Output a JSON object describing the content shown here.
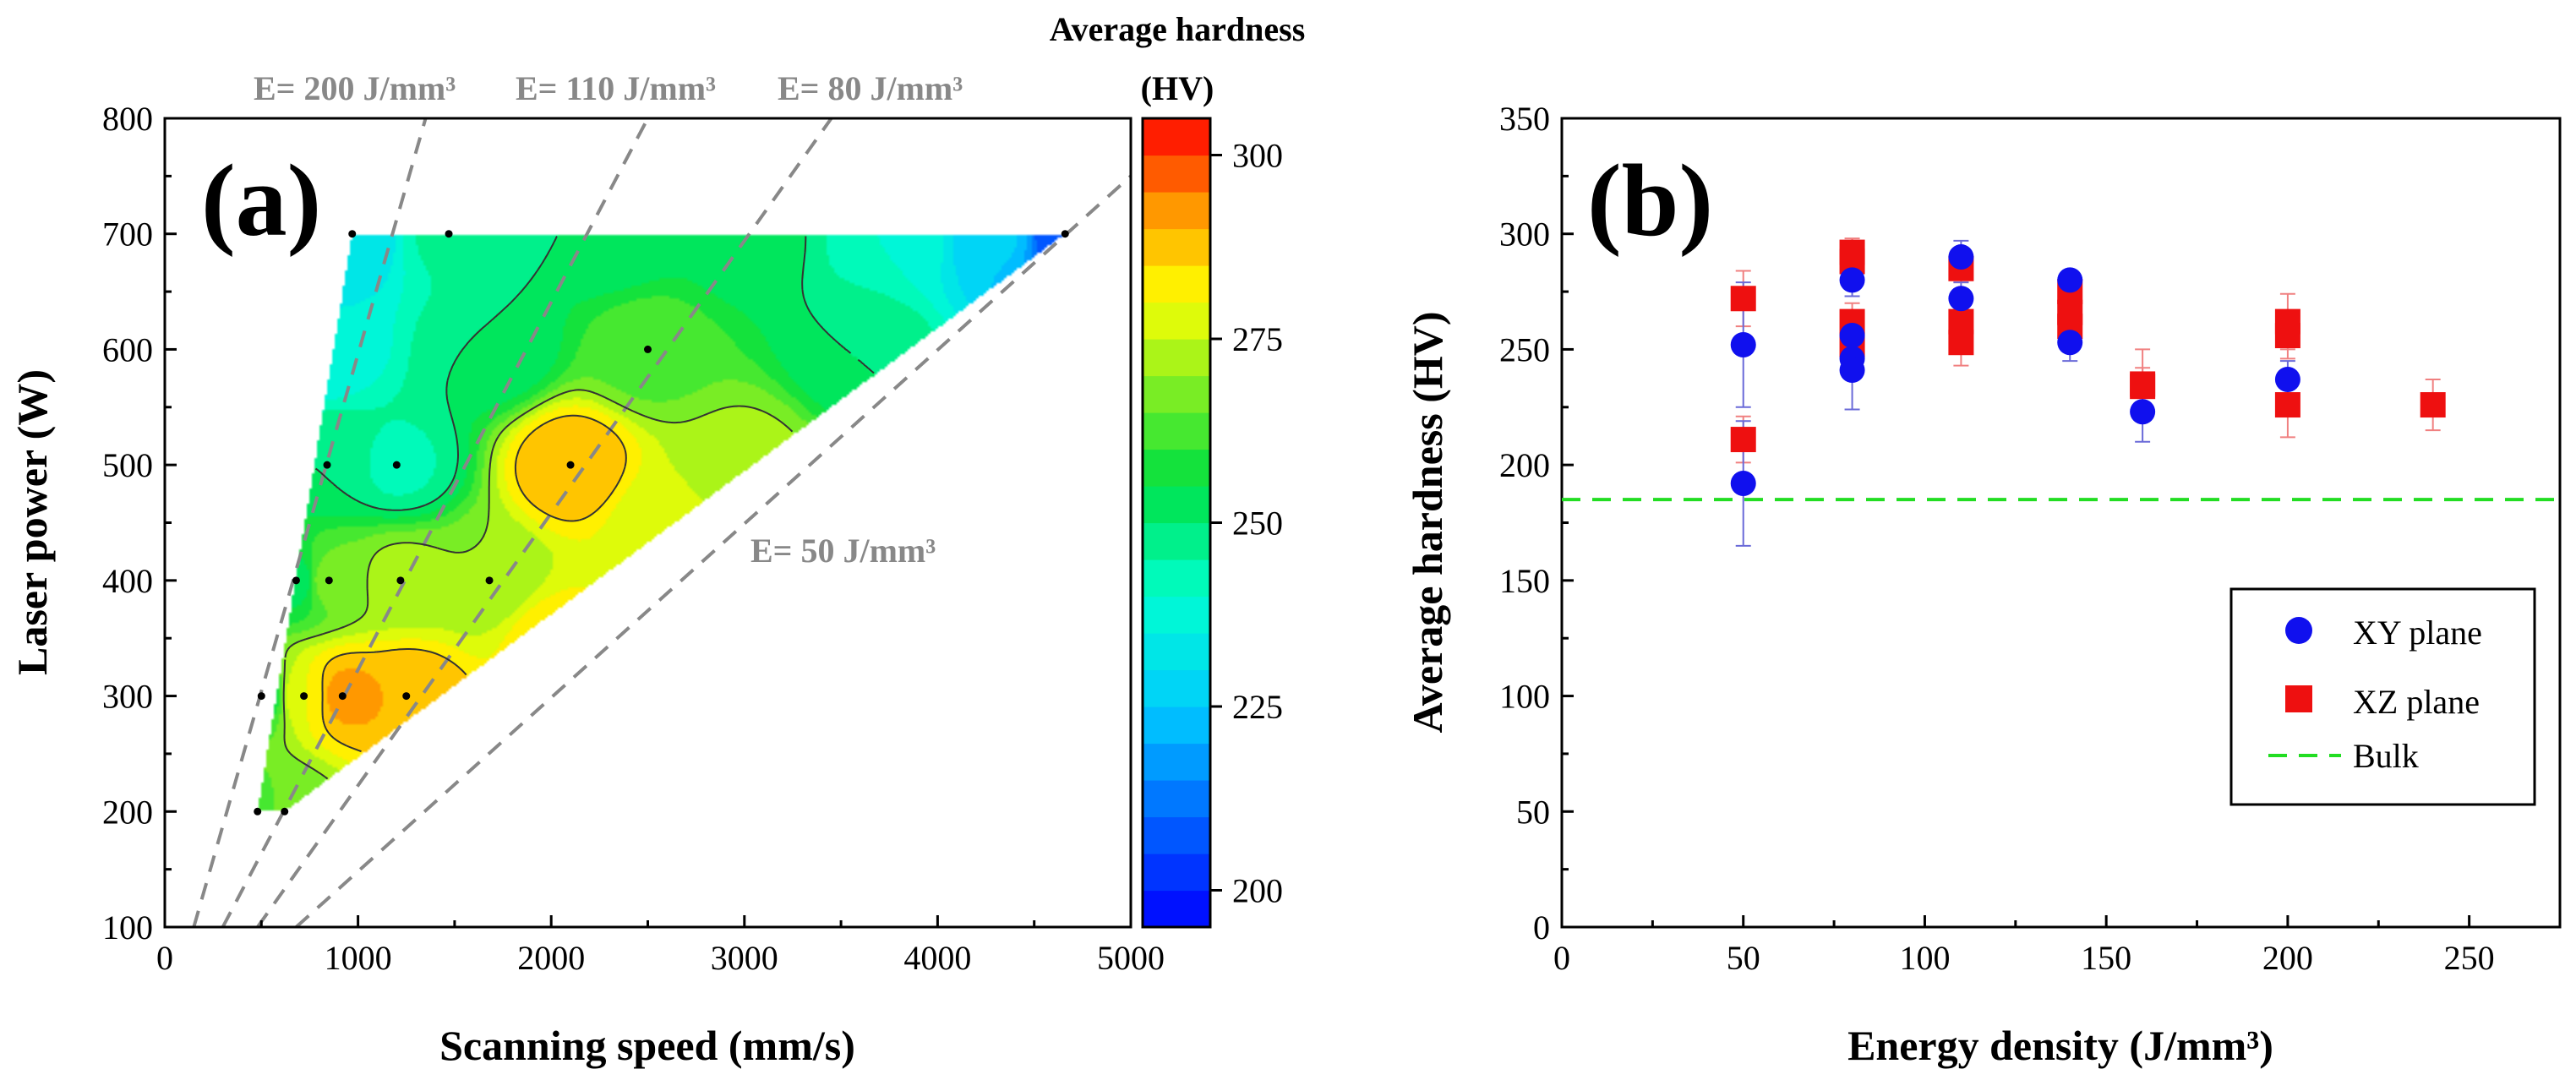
{
  "colors": {
    "xy_marker": "#1010ee",
    "xz_marker": "#ee1010",
    "bulk_line": "#22dd22",
    "guide_line": "#888888",
    "contour_line": "#333333",
    "errorbar_xy": "#6a6ad8",
    "errorbar_xz": "#f08080"
  },
  "chart_data": [
    {
      "id": "a",
      "type": "heatmap",
      "panel_label": "(a)",
      "xlabel": "Scanning speed (mm/s)",
      "ylabel": "Laser power (W)",
      "xlim": [
        0,
        5000
      ],
      "ylim": [
        100,
        800
      ],
      "xticks": [
        0,
        1000,
        2000,
        3000,
        4000,
        5000
      ],
      "yticks": [
        100,
        200,
        300,
        400,
        500,
        600,
        700,
        800
      ],
      "colorbar": {
        "title_line1": "Average hardness",
        "title_line2": "(HV)",
        "range": [
          195,
          305
        ],
        "ticks": [
          200,
          225,
          250,
          275,
          300
        ]
      },
      "energy_lines": [
        {
          "label": "E= 200 J/mm³",
          "E": 200,
          "show_label": true
        },
        {
          "label": "E= 110 J/mm³",
          "E": 110,
          "show_label": true
        },
        {
          "label": "E= 80 J/mm³",
          "E": 80,
          "show_label": true
        },
        {
          "label": "E= 50 J/mm³",
          "E": 50,
          "show_label": true
        }
      ],
      "sample_points": [
        {
          "x": 480,
          "y": 200
        },
        {
          "x": 620,
          "y": 200
        },
        {
          "x": 500,
          "y": 300
        },
        {
          "x": 720,
          "y": 300
        },
        {
          "x": 920,
          "y": 300
        },
        {
          "x": 1250,
          "y": 300
        },
        {
          "x": 680,
          "y": 400
        },
        {
          "x": 850,
          "y": 400
        },
        {
          "x": 1220,
          "y": 400
        },
        {
          "x": 1680,
          "y": 400
        },
        {
          "x": 840,
          "y": 500
        },
        {
          "x": 1200,
          "y": 500
        },
        {
          "x": 2100,
          "y": 500
        },
        {
          "x": 2500,
          "y": 600
        },
        {
          "x": 970,
          "y": 700
        },
        {
          "x": 1470,
          "y": 700
        },
        {
          "x": 4660,
          "y": 700
        }
      ],
      "hardness_map": [
        {
          "x": 500,
          "y": 200,
          "v": 262
        },
        {
          "x": 620,
          "y": 200,
          "v": 268
        },
        {
          "x": 500,
          "y": 300,
          "v": 255
        },
        {
          "x": 720,
          "y": 300,
          "v": 280
        },
        {
          "x": 920,
          "y": 300,
          "v": 292
        },
        {
          "x": 1250,
          "y": 300,
          "v": 290
        },
        {
          "x": 2000,
          "y": 350,
          "v": 283
        },
        {
          "x": 680,
          "y": 400,
          "v": 252
        },
        {
          "x": 850,
          "y": 400,
          "v": 268
        },
        {
          "x": 1220,
          "y": 400,
          "v": 272
        },
        {
          "x": 1680,
          "y": 400,
          "v": 270
        },
        {
          "x": 2600,
          "y": 450,
          "v": 276
        },
        {
          "x": 840,
          "y": 500,
          "v": 250
        },
        {
          "x": 1200,
          "y": 500,
          "v": 244
        },
        {
          "x": 2100,
          "y": 500,
          "v": 290
        },
        {
          "x": 3000,
          "y": 500,
          "v": 272
        },
        {
          "x": 800,
          "y": 600,
          "v": 235
        },
        {
          "x": 1700,
          "y": 600,
          "v": 250
        },
        {
          "x": 2500,
          "y": 600,
          "v": 263
        },
        {
          "x": 3600,
          "y": 600,
          "v": 250
        },
        {
          "x": 970,
          "y": 700,
          "v": 230
        },
        {
          "x": 1470,
          "y": 700,
          "v": 246
        },
        {
          "x": 2300,
          "y": 700,
          "v": 250
        },
        {
          "x": 3000,
          "y": 700,
          "v": 252
        },
        {
          "x": 3800,
          "y": 700,
          "v": 240
        },
        {
          "x": 4300,
          "y": 700,
          "v": 226
        },
        {
          "x": 4660,
          "y": 700,
          "v": 205
        }
      ]
    },
    {
      "id": "b",
      "type": "scatter",
      "panel_label": "(b)",
      "xlabel": "Energy density (J/mm³)",
      "ylabel": "Average hardness (HV)",
      "xlim": [
        0,
        275
      ],
      "ylim": [
        0,
        350
      ],
      "xticks": [
        0,
        50,
        100,
        150,
        200,
        250
      ],
      "yticks": [
        0,
        50,
        100,
        150,
        200,
        250,
        300,
        350
      ],
      "series": [
        {
          "name": "XY plane",
          "marker": "circle",
          "points": [
            {
              "x": 50,
              "y": 252,
              "err": 27
            },
            {
              "x": 50,
              "y": 192,
              "err": 27
            },
            {
              "x": 80,
              "y": 280,
              "err": 7
            },
            {
              "x": 80,
              "y": 256,
              "err": 8
            },
            {
              "x": 80,
              "y": 246,
              "err": 8
            },
            {
              "x": 80,
              "y": 241,
              "err": 17
            },
            {
              "x": 110,
              "y": 290,
              "err": 7
            },
            {
              "x": 110,
              "y": 272,
              "err": 7
            },
            {
              "x": 140,
              "y": 280,
              "err": 4
            },
            {
              "x": 140,
              "y": 253,
              "err": 8
            },
            {
              "x": 160,
              "y": 223,
              "err": 13
            },
            {
              "x": 200,
              "y": 237,
              "err": 8
            }
          ]
        },
        {
          "name": "XZ plane",
          "marker": "square",
          "points": [
            {
              "x": 50,
              "y": 272,
              "err": 12
            },
            {
              "x": 50,
              "y": 211,
              "err": 10
            },
            {
              "x": 80,
              "y": 292,
              "err": 6
            },
            {
              "x": 80,
              "y": 288,
              "err": 6
            },
            {
              "x": 80,
              "y": 262,
              "err": 8
            },
            {
              "x": 80,
              "y": 252,
              "err": 8
            },
            {
              "x": 110,
              "y": 285,
              "err": 6
            },
            {
              "x": 110,
              "y": 262,
              "err": 8
            },
            {
              "x": 110,
              "y": 253,
              "err": 10
            },
            {
              "x": 140,
              "y": 275,
              "err": 5
            },
            {
              "x": 140,
              "y": 266,
              "err": 5
            },
            {
              "x": 140,
              "y": 260,
              "err": 5
            },
            {
              "x": 160,
              "y": 235,
              "err": 15
            },
            {
              "x": 160,
              "y": 234,
              "err": 8
            },
            {
              "x": 200,
              "y": 262,
              "err": 12
            },
            {
              "x": 200,
              "y": 256,
              "err": 10
            },
            {
              "x": 200,
              "y": 226,
              "err": 14
            },
            {
              "x": 240,
              "y": 226,
              "err": 11
            }
          ]
        }
      ],
      "bulk": {
        "name": "Bulk",
        "value": 185
      }
    }
  ]
}
